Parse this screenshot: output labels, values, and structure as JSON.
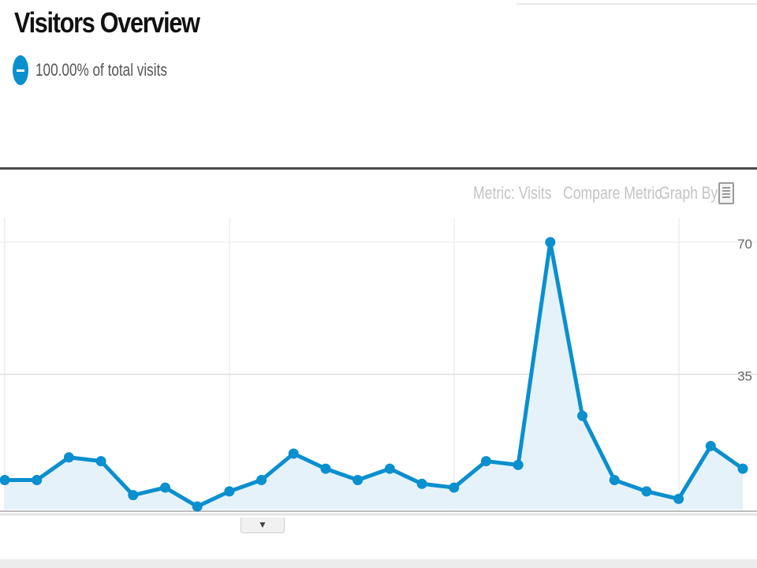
{
  "header": {
    "title": "Visitors Overview",
    "segment_label": "100.00% of total visits"
  },
  "controls": {
    "metric_label": "Metric: Visits",
    "compare_label": "Compare Metric",
    "graph_by_label": "Graph By:"
  },
  "toggle": {
    "icon": "triangle-down-icon",
    "glyph": "▼"
  },
  "colors": {
    "accent": "#0a8fcf",
    "area_fill": "#e5f2fa",
    "divider": "#4a4a4a"
  },
  "chart_data": {
    "type": "area",
    "title": "",
    "xlabel": "",
    "ylabel": "",
    "ylim": [
      0,
      70
    ],
    "y_ticks": [
      "70",
      "35"
    ],
    "grid": true,
    "series": [
      {
        "values": [
          7,
          7,
          13,
          12,
          3,
          5,
          0,
          4,
          7,
          14,
          10,
          7,
          10,
          6,
          5,
          12,
          11,
          70,
          24,
          7,
          4,
          2,
          16,
          10
        ]
      }
    ]
  }
}
